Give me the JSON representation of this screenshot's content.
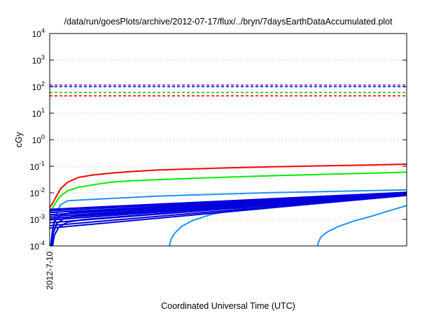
{
  "chart_data": {
    "type": "line",
    "title": "/data/run/goesPlots/archive/2012-07-17/flux/../bryn/7daysEarthDataAccumulated.plot",
    "xlabel": "Coordinated Universal Time (UTC)",
    "ylabel": "cGy",
    "yscale": "log",
    "ylim": [
      0.0001,
      10000
    ],
    "x_ticks": [
      {
        "x": 0,
        "label": "2012-7-10"
      }
    ],
    "y_ticks": [
      {
        "value": 0.0001,
        "base": "10",
        "exp": "-4"
      },
      {
        "value": 0.001,
        "base": "10",
        "exp": "-3"
      },
      {
        "value": 0.01,
        "base": "10",
        "exp": "-2"
      },
      {
        "value": 0.1,
        "base": "10",
        "exp": "-1"
      },
      {
        "value": 1,
        "base": "10",
        "exp": "0"
      },
      {
        "value": 10,
        "base": "10",
        "exp": "1"
      },
      {
        "value": 100,
        "base": "10",
        "exp": "2"
      },
      {
        "value": 1000,
        "base": "10",
        "exp": "3"
      },
      {
        "value": 10000,
        "base": "10",
        "exp": "4"
      }
    ],
    "xlim": [
      0,
      100
    ],
    "grid": {
      "y": true,
      "x": false,
      "style": "dotted"
    },
    "thresholds": [
      {
        "value": 115,
        "color": "#8a2be2"
      },
      {
        "value": 100,
        "color": "#0000ff"
      },
      {
        "value": 60,
        "color": "#00cc00"
      },
      {
        "value": 45,
        "color": "#ff0000"
      }
    ],
    "series": [
      {
        "color": "#ff0000",
        "points": [
          [
            0,
            0.0028
          ],
          [
            1,
            0.0045
          ],
          [
            2,
            0.008
          ],
          [
            3,
            0.014
          ],
          [
            5,
            0.025
          ],
          [
            8,
            0.038
          ],
          [
            12,
            0.047
          ],
          [
            17,
            0.055
          ],
          [
            22,
            0.062
          ],
          [
            30,
            0.072
          ],
          [
            40,
            0.08
          ],
          [
            50,
            0.087
          ],
          [
            60,
            0.094
          ],
          [
            70,
            0.1
          ],
          [
            80,
            0.106
          ],
          [
            90,
            0.112
          ],
          [
            100,
            0.12
          ]
        ]
      },
      {
        "color": "#00ee00",
        "points": [
          [
            0,
            0.0019
          ],
          [
            1,
            0.003
          ],
          [
            2,
            0.005
          ],
          [
            3,
            0.0075
          ],
          [
            5,
            0.012
          ],
          [
            8,
            0.016
          ],
          [
            12,
            0.02
          ],
          [
            17,
            0.025
          ],
          [
            22,
            0.028
          ],
          [
            30,
            0.031
          ],
          [
            40,
            0.035
          ],
          [
            50,
            0.039
          ],
          [
            60,
            0.043
          ],
          [
            70,
            0.047
          ],
          [
            80,
            0.051
          ],
          [
            90,
            0.055
          ],
          [
            100,
            0.06
          ]
        ]
      },
      {
        "color": "#1e90ff",
        "points": [
          [
            0.6,
            0.0001
          ],
          [
            1,
            0.0006
          ],
          [
            2,
            0.0018
          ],
          [
            3,
            0.0035
          ],
          [
            5,
            0.005
          ],
          [
            10,
            0.0055
          ],
          [
            30,
            0.0075
          ],
          [
            60,
            0.01
          ],
          [
            100,
            0.013
          ]
        ]
      },
      {
        "color": "#1e90ff",
        "points": [
          [
            33.5,
            0.0001
          ],
          [
            34,
            0.00018
          ],
          [
            35,
            0.0003
          ],
          [
            37,
            0.00055
          ],
          [
            40,
            0.0009
          ],
          [
            45,
            0.0015
          ],
          [
            55,
            0.0028
          ],
          [
            70,
            0.0048
          ],
          [
            85,
            0.0072
          ],
          [
            100,
            0.01
          ]
        ]
      },
      {
        "color": "#1e90ff",
        "points": [
          [
            75,
            0.0001
          ],
          [
            75.4,
            0.00015
          ],
          [
            76,
            0.00022
          ],
          [
            78,
            0.00035
          ],
          [
            81,
            0.00055
          ],
          [
            85,
            0.00085
          ],
          [
            90,
            0.0013
          ],
          [
            95,
            0.0021
          ],
          [
            100,
            0.0033
          ]
        ]
      },
      {
        "color": "#0000dd",
        "points": [
          [
            0,
            0.0024
          ],
          [
            100,
            0.0105
          ]
        ]
      },
      {
        "color": "#0000dd",
        "points": [
          [
            0,
            0.0021
          ],
          [
            100,
            0.0102
          ]
        ]
      },
      {
        "color": "#0000dd",
        "points": [
          [
            0,
            0.0018
          ],
          [
            100,
            0.0098
          ]
        ]
      },
      {
        "color": "#0000dd",
        "points": [
          [
            0,
            0.0015
          ],
          [
            100,
            0.0095
          ]
        ]
      },
      {
        "color": "#0000dd",
        "points": [
          [
            0,
            0.0013
          ],
          [
            100,
            0.0092
          ]
        ]
      },
      {
        "color": "#0000dd",
        "points": [
          [
            0,
            0.0011
          ],
          [
            100,
            0.0089
          ]
        ]
      },
      {
        "color": "#0000dd",
        "points": [
          [
            0,
            0.00095
          ],
          [
            100,
            0.0087
          ]
        ]
      },
      {
        "color": "#0000dd",
        "points": [
          [
            0,
            0.00075
          ],
          [
            100,
            0.0085
          ]
        ]
      },
      {
        "color": "#0000dd",
        "points": [
          [
            0,
            0.00058
          ],
          [
            100,
            0.0083
          ]
        ]
      },
      {
        "color": "#0000dd",
        "points": [
          [
            0,
            0.00047
          ],
          [
            100,
            0.008
          ]
        ]
      },
      {
        "color": "#0000dd",
        "points": [
          [
            0.3,
            0.0001
          ],
          [
            0.8,
            0.0004
          ],
          [
            1.5,
            0.0009
          ],
          [
            3,
            0.0014
          ],
          [
            6,
            0.0018
          ],
          [
            100,
            0.0095
          ]
        ]
      },
      {
        "color": "#0000dd",
        "points": [
          [
            0.5,
            0.0001
          ],
          [
            1,
            0.0003
          ],
          [
            2,
            0.0007
          ],
          [
            4,
            0.0011
          ],
          [
            8,
            0.0014
          ],
          [
            100,
            0.009
          ]
        ]
      },
      {
        "color": "#0000dd",
        "points": [
          [
            0.8,
            0.0001
          ],
          [
            1.3,
            0.00025
          ],
          [
            2.5,
            0.0005
          ],
          [
            5,
            0.0008
          ],
          [
            10,
            0.001
          ],
          [
            100,
            0.0087
          ]
        ]
      }
    ]
  }
}
